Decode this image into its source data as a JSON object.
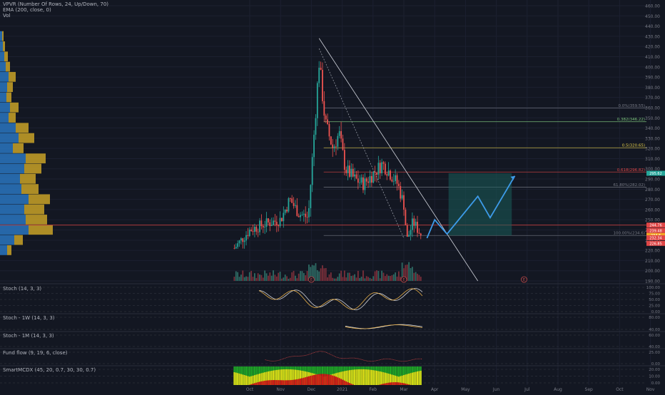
{
  "legend": {
    "line1": "VPVR (Number Of Rows, 24, Up/Down, 70)",
    "line2": "EMA (200, close, 0)",
    "line3": "Vol"
  },
  "panes": {
    "stoch": "Stoch (14, 3, 3)",
    "stoch_1w": "Stoch - 1W (14, 3, 3)",
    "stoch_1m": "Stoch - 1M (14, 3, 3)",
    "fund_flow": "Fund flow (9, 19, 6, close)",
    "smartmcdx": "SmartMCDX (45, 20, 0.7, 30, 30, 0.7)"
  },
  "colors": {
    "background": "#131722",
    "up": "#26a69a",
    "down": "#ef5350",
    "volume_up": "#2e6b64",
    "volume_down": "#7a2f3a",
    "vp_blue": "#2a76c0",
    "vp_gold": "#c9a227",
    "fib_yellow": "#e8d14a",
    "fib_green": "#7cc47b",
    "projection": "#3d9be9",
    "support_red": "#e04646",
    "mcdx_green": "#1faa27",
    "mcdx_yellow": "#dede16",
    "mcdx_red": "#d21616"
  },
  "chart_data": {
    "type": "candlestick",
    "price_axis": {
      "min": 190,
      "max": 460,
      "ticks": [
        460,
        450,
        440,
        430,
        420,
        410,
        400,
        390,
        380,
        370,
        360,
        350,
        340,
        330,
        320,
        310,
        300,
        290,
        280,
        270,
        260,
        250,
        240,
        230,
        220,
        210,
        200,
        190
      ]
    },
    "time_axis": {
      "labels": [
        "Oct",
        "Nov",
        "Dec",
        "2021",
        "Feb",
        "Mar",
        "Apr",
        "May",
        "Jun",
        "Jul",
        "Aug",
        "Sep",
        "Oct",
        "Nov"
      ],
      "months_from_start": [
        0,
        1,
        2,
        3,
        4,
        5,
        6,
        7,
        8,
        9,
        10,
        11,
        12,
        13
      ]
    },
    "price_labels": [
      {
        "value": 244.76,
        "text": "244.76",
        "color": "#e04646"
      },
      {
        "value": 239.48,
        "text": "239.48",
        "color": "#e04646"
      },
      {
        "value": 234.6,
        "text": "234.6",
        "color": "#f4a623"
      },
      {
        "value": 232.34,
        "text": "232.34",
        "color": "#e04646"
      },
      {
        "value": 226.85,
        "text": "226.85",
        "color": "#e04646"
      },
      {
        "value": 295.62,
        "text": "295.62",
        "color": "#26a69a"
      }
    ],
    "fibonacci": [
      {
        "ratio": "0.0%",
        "price": 359.55,
        "label": "0.0%(359.55)",
        "color": "#787b86"
      },
      {
        "ratio": "0.382",
        "price": 346.22,
        "label": "0.382(346.22)",
        "color": "#7cc47b"
      },
      {
        "ratio": "0.5",
        "price": 320.65,
        "label": "0.5(320.65)",
        "color": "#e8d14a"
      },
      {
        "ratio": "0.618",
        "price": 296.82,
        "label": "0.618(296.82)",
        "color": "#e04646"
      },
      {
        "ratio": "61.80%",
        "price": 282.02,
        "label": "61.80%(282.02)",
        "color": "#787b86"
      },
      {
        "ratio": "100.00%",
        "price": 234.6,
        "label": "100.00%(234.6)",
        "color": "#787b86"
      }
    ],
    "projection_path": [
      {
        "month": 5.75,
        "price": 232
      },
      {
        "month": 6.0,
        "price": 250
      },
      {
        "month": 6.4,
        "price": 236
      },
      {
        "month": 7.4,
        "price": 273
      },
      {
        "month": 7.8,
        "price": 252
      },
      {
        "month": 8.6,
        "price": 293
      }
    ],
    "projection_box": {
      "from_month": 6.45,
      "to_month": 8.5,
      "low": 234.6,
      "high": 295.62
    },
    "horizontal_support": {
      "price": 244.76
    },
    "descending_trendline": [
      {
        "month": 2.25,
        "price": 428
      },
      {
        "month": 7.4,
        "price": 190
      }
    ],
    "dotted_trendline": [
      {
        "month": 2.25,
        "price": 418
      },
      {
        "month": 5.0,
        "price": 232
      }
    ],
    "candle_summary": {
      "start_month": -0.5,
      "end_month": 5.6,
      "path": [
        {
          "month": -0.5,
          "price": 222
        },
        {
          "month": 0.0,
          "price": 240
        },
        {
          "month": 0.5,
          "price": 246
        },
        {
          "month": 1.0,
          "price": 250
        },
        {
          "month": 1.3,
          "price": 270
        },
        {
          "month": 1.6,
          "price": 256
        },
        {
          "month": 1.9,
          "price": 252
        },
        {
          "month": 2.1,
          "price": 340
        },
        {
          "month": 2.25,
          "price": 405
        },
        {
          "month": 2.45,
          "price": 345
        },
        {
          "month": 2.7,
          "price": 320
        },
        {
          "month": 2.9,
          "price": 335
        },
        {
          "month": 3.1,
          "price": 300
        },
        {
          "month": 3.4,
          "price": 290
        },
        {
          "month": 3.7,
          "price": 285
        },
        {
          "month": 4.0,
          "price": 295
        },
        {
          "month": 4.3,
          "price": 305
        },
        {
          "month": 4.5,
          "price": 298
        },
        {
          "month": 4.8,
          "price": 285
        },
        {
          "month": 5.0,
          "price": 265
        },
        {
          "month": 5.1,
          "price": 230
        },
        {
          "month": 5.3,
          "price": 248
        },
        {
          "month": 5.5,
          "price": 238
        },
        {
          "month": 5.6,
          "price": 234
        }
      ]
    },
    "stoch_levels": {
      "ticks": [
        "100.00",
        "75.00",
        "50.00",
        "25.00",
        "0.00"
      ]
    },
    "stoch_1w_levels": {
      "ticks": [
        "80.00",
        "40.00"
      ]
    },
    "stoch_1m_levels": {
      "ticks": [
        "60.00",
        "40.00"
      ]
    },
    "fund_flow_levels": {
      "ticks": [
        "25.00",
        "0.00"
      ]
    },
    "mcdx_levels": {
      "ticks": [
        "20.00",
        "10.00",
        "0.00"
      ]
    },
    "event_markers": [
      {
        "month": 2.0,
        "text": "E"
      },
      {
        "month": 5.0,
        "text": "E"
      },
      {
        "month": 8.9,
        "text": "E"
      }
    ]
  }
}
